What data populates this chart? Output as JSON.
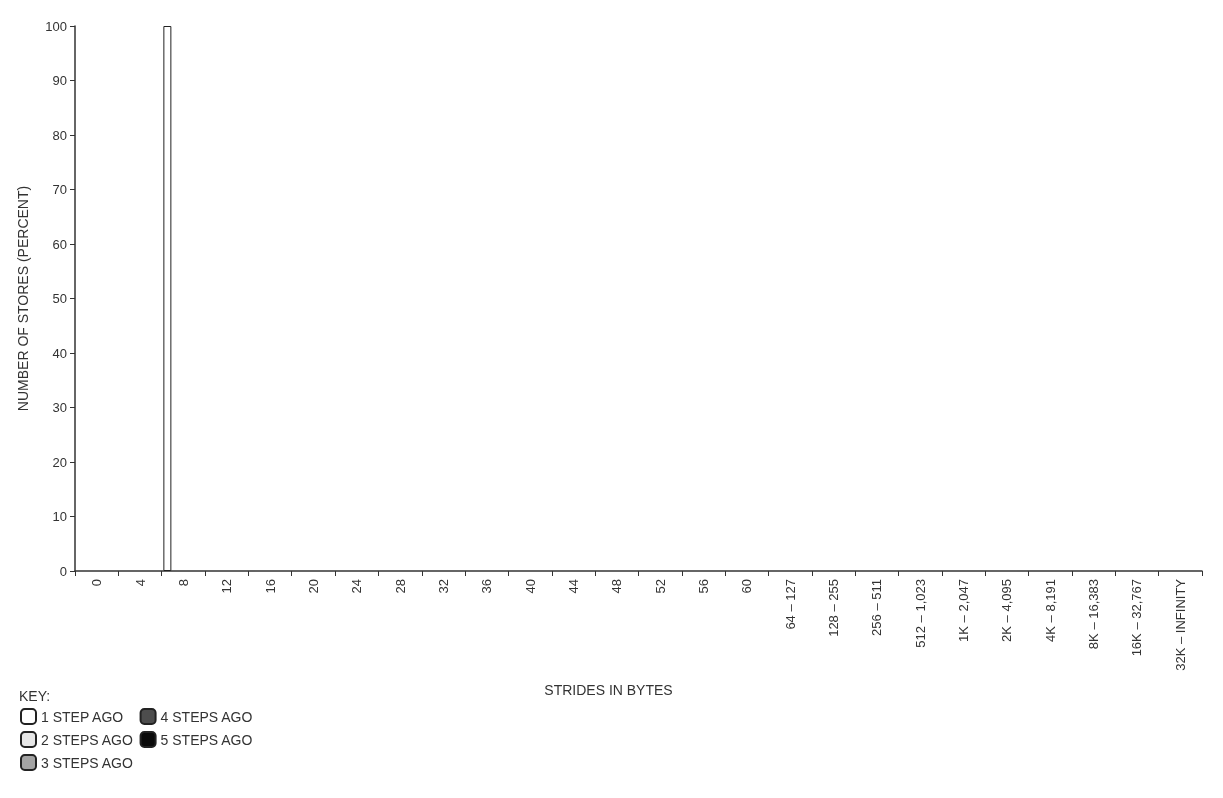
{
  "chart_data": {
    "type": "bar",
    "xlabel": "STRIDES IN BYTES",
    "ylabel": "NUMBER OF STORES (PERCENT)",
    "legend_title": "KEY:",
    "categories": [
      "0",
      "4",
      "8",
      "12",
      "16",
      "20",
      "24",
      "28",
      "32",
      "36",
      "40",
      "44",
      "48",
      "52",
      "56",
      "60",
      "64 – 127",
      "128 – 255",
      "256 – 511",
      "512 – 1,023",
      "1K – 2,047",
      "2K – 4,095",
      "4K – 8,191",
      "8K – 16,383",
      "16K – 32,767",
      "32K – INFINITY"
    ],
    "series": [
      {
        "name": "1 STEP AGO",
        "color": "#ffffff",
        "values": [
          0,
          0,
          100,
          0,
          0,
          0,
          0,
          0,
          0,
          0,
          0,
          0,
          0,
          0,
          0,
          0,
          0,
          0,
          0,
          0,
          0,
          0,
          0,
          0,
          0,
          0
        ]
      },
      {
        "name": "2 STEPS AGO",
        "color": "#e6e6e6",
        "values": [
          0,
          0,
          0,
          0,
          0,
          0,
          0,
          0,
          0,
          0,
          0,
          0,
          0,
          0,
          0,
          0,
          0,
          0,
          0,
          0,
          0,
          0,
          0,
          0,
          0,
          0
        ]
      },
      {
        "name": "3 STEPS AGO",
        "color": "#a3a3a3",
        "values": [
          0,
          0,
          0,
          0,
          0,
          0,
          0,
          0,
          0,
          0,
          0,
          0,
          0,
          0,
          0,
          0,
          0,
          0,
          0,
          0,
          0,
          0,
          0,
          0,
          0,
          0
        ]
      },
      {
        "name": "4 STEPS AGO",
        "color": "#4d4d4d",
        "values": [
          0,
          0,
          0,
          0,
          0,
          0,
          0,
          0,
          0,
          0,
          0,
          0,
          0,
          0,
          0,
          0,
          0,
          0,
          0,
          0,
          0,
          0,
          0,
          0,
          0,
          0
        ]
      },
      {
        "name": "5 STEPS AGO",
        "color": "#0a0a0a",
        "values": [
          0,
          0,
          0,
          0,
          0,
          0,
          0,
          0,
          0,
          0,
          0,
          0,
          0,
          0,
          0,
          0,
          0,
          0,
          0,
          0,
          0,
          0,
          0,
          0,
          0,
          0
        ]
      }
    ],
    "ylim": [
      0,
      100
    ],
    "yticks": [
      0,
      10,
      20,
      30,
      40,
      50,
      60,
      70,
      80,
      90,
      100
    ],
    "grid": false,
    "legend": "bottom left"
  }
}
